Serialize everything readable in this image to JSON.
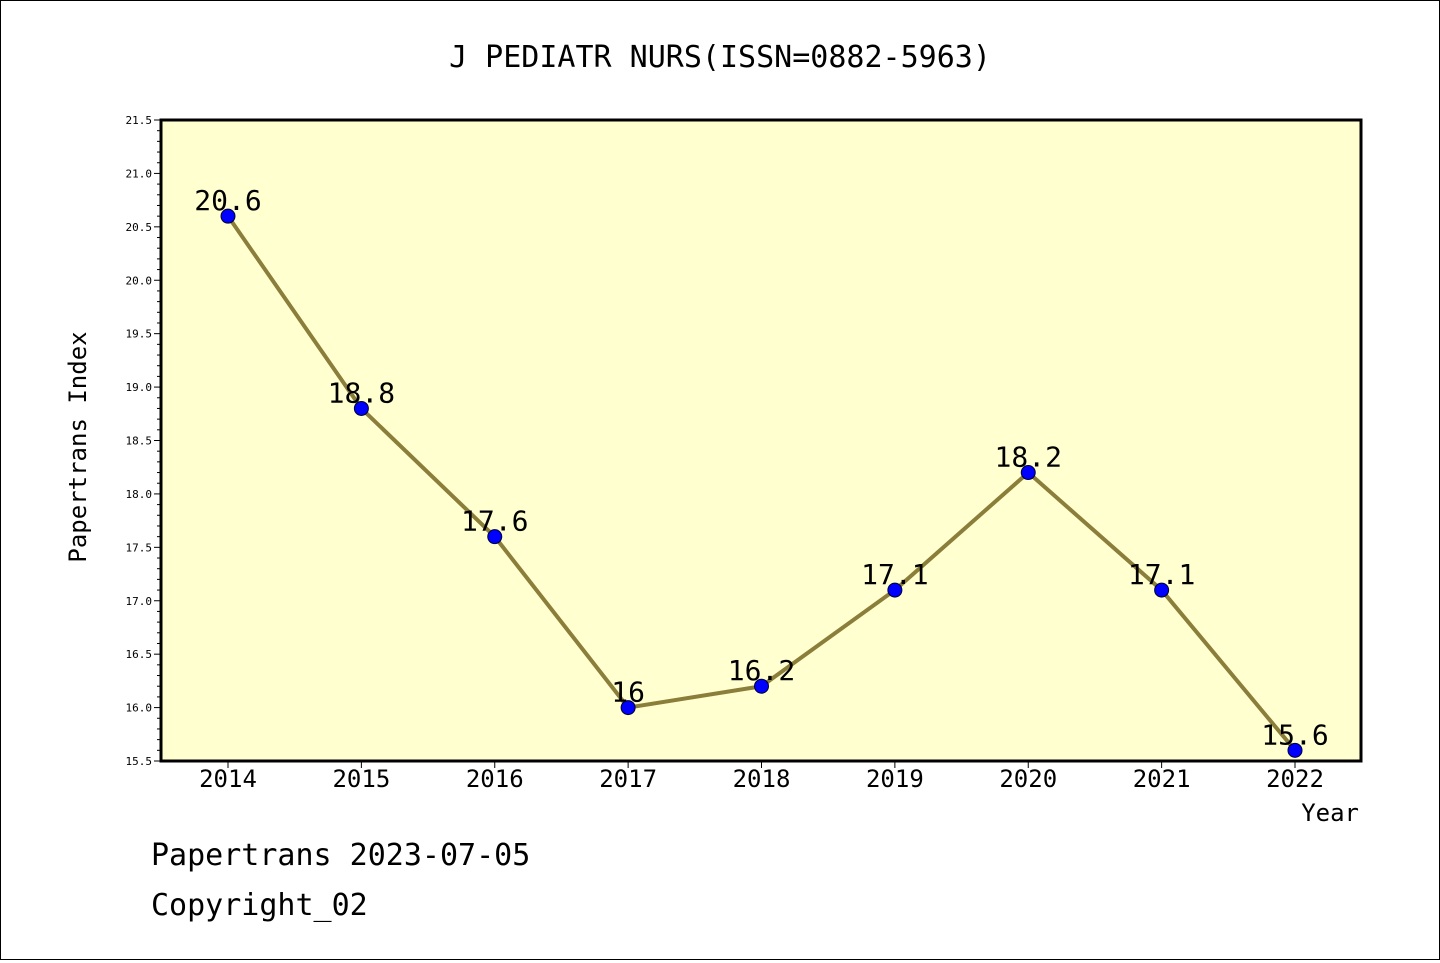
{
  "chart_data": {
    "type": "line",
    "title": "J PEDIATR NURS(ISSN=0882-5963)",
    "xlabel": "Year",
    "ylabel": "Papertrans Index",
    "categories": [
      "2014",
      "2015",
      "2016",
      "2017",
      "2018",
      "2019",
      "2020",
      "2021",
      "2022"
    ],
    "values": [
      20.6,
      18.8,
      17.6,
      16,
      16.2,
      17.1,
      18.2,
      17.1,
      15.6
    ],
    "data_labels": [
      "20.6",
      "18.8",
      "17.6",
      "16",
      "16.2",
      "17.1",
      "18.2",
      "17.1",
      "15.6"
    ],
    "ylim": [
      15.5,
      21.5
    ],
    "yticks": [
      15.5,
      16.0,
      16.5,
      17.0,
      17.5,
      18.0,
      18.5,
      19.0,
      19.5,
      20.0,
      20.5,
      21.0,
      21.5
    ],
    "ytick_labels": [
      "15.5",
      "16.0",
      "16.5",
      "17.0",
      "17.5",
      "18.0",
      "18.5",
      "19.0",
      "19.5",
      "20.0",
      "20.5",
      "21.0",
      "21.5"
    ],
    "grid": false,
    "legend": "none",
    "colors": {
      "plot_background": "#ffffd0",
      "line": "#8b7d3a",
      "marker": "#0000ff",
      "frame": "#000000"
    }
  },
  "footer": {
    "line1": "Papertrans 2023-07-05",
    "line2": "Copyright_02"
  }
}
